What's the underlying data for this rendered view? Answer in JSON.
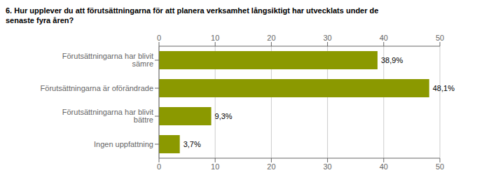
{
  "chart_data": {
    "type": "bar",
    "orientation": "horizontal",
    "title": "6. Hur upplever du att förutsättningarna för att planera verksamhet långsiktigt har utvecklats under de\nsenaste fyra åren?",
    "categories": [
      "Ingen uppfattning",
      "Förutsättningarna har blivit bättre",
      "Förutsättningarna är oförändrade",
      "Förutsättningarna har blivit sämre"
    ],
    "values": [
      3.7,
      9.3,
      48.1,
      38.9
    ],
    "value_labels": [
      "3,7%",
      "9,3%",
      "48,1%",
      "38,9%"
    ],
    "data_labels": true,
    "color": "#8b9900",
    "xlim": [
      0,
      50
    ],
    "xticks": [
      0,
      10,
      20,
      30,
      40,
      50
    ],
    "grid": true
  }
}
